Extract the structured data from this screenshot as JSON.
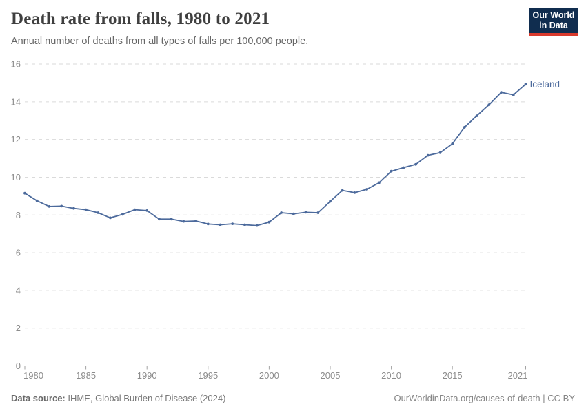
{
  "header": {
    "title": "Death rate from falls, 1980 to 2021",
    "subtitle": "Annual number of deaths from all types of falls per 100,000 people.",
    "logo": {
      "line1": "Our World",
      "line2": "in Data"
    }
  },
  "chart_data": {
    "type": "line",
    "title": "Death rate from falls, 1980 to 2021",
    "subtitle": "Annual number of deaths from all types of falls per 100,000 people.",
    "xlabel": "",
    "ylabel": "",
    "xlim": [
      1980,
      2021
    ],
    "ylim": [
      0,
      16
    ],
    "xticks": [
      1980,
      1985,
      1990,
      1995,
      2000,
      2005,
      2010,
      2015,
      2021
    ],
    "yticks": [
      0,
      2,
      4,
      6,
      8,
      10,
      12,
      14,
      16
    ],
    "grid": "horizontal-dashed",
    "legend_position": "end-of-line-label",
    "series": [
      {
        "name": "Iceland",
        "color": "#4c6a9c",
        "x": [
          1980,
          1981,
          1982,
          1983,
          1984,
          1985,
          1986,
          1987,
          1988,
          1989,
          1990,
          1991,
          1992,
          1993,
          1994,
          1995,
          1996,
          1997,
          1998,
          1999,
          2000,
          2001,
          2002,
          2003,
          2004,
          2005,
          2006,
          2007,
          2008,
          2009,
          2010,
          2011,
          2012,
          2013,
          2014,
          2015,
          2016,
          2017,
          2018,
          2019,
          2020,
          2021
        ],
        "values": [
          9.15,
          8.75,
          8.45,
          8.47,
          8.35,
          8.28,
          8.12,
          7.85,
          8.03,
          8.28,
          8.23,
          7.78,
          7.78,
          7.66,
          7.68,
          7.52,
          7.48,
          7.53,
          7.48,
          7.44,
          7.62,
          8.12,
          8.06,
          8.14,
          8.12,
          8.72,
          9.3,
          9.18,
          9.36,
          9.71,
          10.32,
          10.51,
          10.68,
          11.16,
          11.3,
          11.77,
          12.65,
          13.26,
          13.84,
          14.5,
          14.37,
          14.93
        ]
      }
    ]
  },
  "footer": {
    "source_label": "Data source:",
    "source_value": " IHME, Global Burden of Disease (2024)",
    "attribution": "OurWorldinData.org/causes-of-death | CC BY"
  },
  "colors": {
    "line": "#4c6a9c",
    "end_label": "#4c6a9c",
    "gridline": "#dadada",
    "axis": "#a3a3a3",
    "tick_label": "#8c8c8c",
    "logo_bg": "#102d4f",
    "logo_bar": "#d93a2d"
  }
}
